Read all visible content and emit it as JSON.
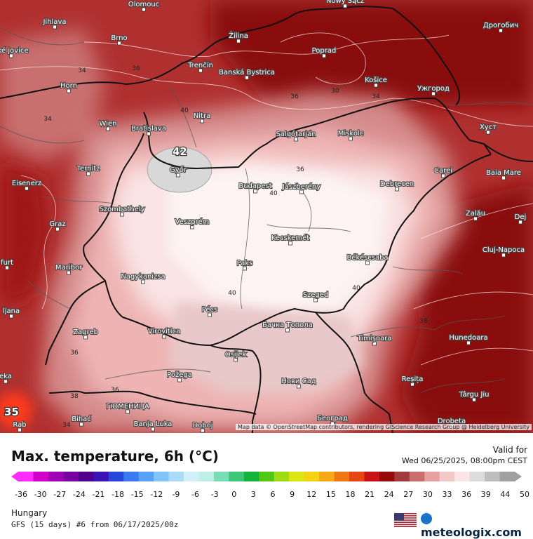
{
  "title": "Max. temperature, 6h (°C)",
  "valid_label": "Valid for",
  "valid_date": "Wed 06/25/2025, 08:00pm CEST",
  "region": "Hungary",
  "model_run": "GFS (15 days) #6 from  06/17/2025/00z",
  "brand": "meteologix.com",
  "flag_icon": "us-flag-icon",
  "attribution": "Map data © OpenStreetMap contributors, rendering GIScience Research Group @ Heidelberg University",
  "legend": {
    "ticks": [
      "-36",
      "-30",
      "-27",
      "-24",
      "-21",
      "-18",
      "-15",
      "-12",
      "-9",
      "-6",
      "-3",
      "0",
      "3",
      "6",
      "9",
      "12",
      "15",
      "18",
      "21",
      "24",
      "27",
      "30",
      "33",
      "36",
      "39",
      "44",
      "50"
    ],
    "colors": [
      "#ff2dff",
      "#d200c8",
      "#a000b4",
      "#7800a0",
      "#50008c",
      "#3c14b4",
      "#2846dc",
      "#3c78f0",
      "#5aa0f5",
      "#82c3fa",
      "#aadcfa",
      "#d2f0fa",
      "#bef0e6",
      "#78dcb4",
      "#3cc878",
      "#14b43c",
      "#50c814",
      "#a0dc14",
      "#dce614",
      "#f5d214",
      "#f5aa14",
      "#f07814",
      "#e64614",
      "#c81414",
      "#960a0a",
      "#a03c3c",
      "#c86e6e",
      "#e6a0a0",
      "#f5c8c8",
      "#fae6e6",
      "#dcdcdc",
      "#bebebe",
      "#a0a0a0"
    ]
  },
  "map": {
    "cities": [
      {
        "name": "Olomouc"
      },
      {
        "name": "Nowy Sącz"
      },
      {
        "name": "Jihlava"
      },
      {
        "name": "Brno"
      },
      {
        "name": "Žilina"
      },
      {
        "name": "Poprad"
      },
      {
        "name": "Дрогобич"
      },
      {
        "name": "Trenčín"
      },
      {
        "name": "Banská Bystrica"
      },
      {
        "name": "Košice"
      },
      {
        "name": "Ужгород"
      },
      {
        "name": "Horn"
      },
      {
        "name": "Nitra"
      },
      {
        "name": "Wien"
      },
      {
        "name": "Bratislava"
      },
      {
        "name": "Salgótarján"
      },
      {
        "name": "Miskolc"
      },
      {
        "name": "Хуст"
      },
      {
        "name": "Győr"
      },
      {
        "name": "Ternitz"
      },
      {
        "name": "Carei"
      },
      {
        "name": "Baia Mare"
      },
      {
        "name": "Eisenerz"
      },
      {
        "name": "Budapest"
      },
      {
        "name": "Jászberény"
      },
      {
        "name": "Debrecen"
      },
      {
        "name": "Szombathely"
      },
      {
        "name": "Zalău"
      },
      {
        "name": "Veszprém"
      },
      {
        "name": "Graz"
      },
      {
        "name": "Dej"
      },
      {
        "name": "Kecskemét"
      },
      {
        "name": "Cluj-Napoca"
      },
      {
        "name": "Paks"
      },
      {
        "name": "Békéscsaba"
      },
      {
        "name": "Maribor"
      },
      {
        "name": "Nagykanizsa"
      },
      {
        "name": "Szeged"
      },
      {
        "name": "Pécs"
      },
      {
        "name": "Zagreb"
      },
      {
        "name": "Virovitica"
      },
      {
        "name": "Бачка Топола"
      },
      {
        "name": "Timișoara"
      },
      {
        "name": "Hunedoara"
      },
      {
        "name": "Osijek"
      },
      {
        "name": "Požega"
      },
      {
        "name": "Нови Сад"
      },
      {
        "name": "Reșița"
      },
      {
        "name": "ГЮМЕНИЦА"
      },
      {
        "name": "Târgu Jiu"
      },
      {
        "name": "Bihać"
      },
      {
        "name": "Banja Luka"
      },
      {
        "name": "Doboj"
      },
      {
        "name": "Београд"
      },
      {
        "name": "Drobeta"
      },
      {
        "name": "ské jovice"
      },
      {
        "name": "furt"
      },
      {
        "name": "ljana"
      },
      {
        "name": "eka"
      },
      {
        "name": "Rab"
      }
    ],
    "isotherm_labels": [
      "34",
      "36",
      "34",
      "40",
      "36",
      "40",
      "40",
      "40",
      "38",
      "36",
      "38",
      "30",
      "34",
      "34",
      "36",
      "30",
      "36"
    ],
    "max_value": "42",
    "corner_value": "35"
  }
}
